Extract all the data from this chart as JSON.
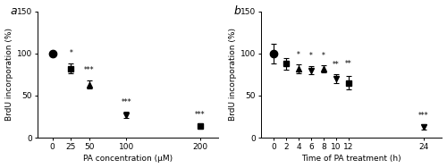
{
  "panel_a": {
    "x": [
      0,
      25,
      50,
      100,
      200
    ],
    "y": [
      100,
      82,
      63,
      27,
      14
    ],
    "yerr": [
      3,
      6,
      5,
      4,
      3
    ],
    "markers": [
      "o",
      "s",
      "^",
      "v",
      "s"
    ],
    "fillstyles": [
      "full",
      "full",
      "full",
      "full",
      "full"
    ],
    "mfc": [
      "black",
      "black",
      "black",
      "black",
      "black"
    ],
    "marker_sizes": [
      6,
      5,
      5,
      5,
      5
    ],
    "significance": [
      "",
      "*",
      "***",
      "***",
      "***"
    ],
    "sig_offset": [
      0,
      8,
      7,
      6,
      5
    ],
    "xlabel": "PA concentration (μM)",
    "ylabel": "BrdU incorporation (%)",
    "xlim": [
      -20,
      225
    ],
    "ylim": [
      0,
      150
    ],
    "yticks": [
      0,
      50,
      100,
      150
    ],
    "xticks": [
      0,
      25,
      50,
      100,
      200
    ],
    "panel_label": "a"
  },
  "panel_b": {
    "x": [
      0,
      2,
      4,
      6,
      8,
      10,
      12,
      24
    ],
    "y": [
      100,
      88,
      82,
      80,
      82,
      70,
      65,
      13
    ],
    "yerr": [
      12,
      7,
      5,
      5,
      4,
      5,
      8,
      3
    ],
    "markers": [
      "o",
      "s",
      "^",
      "v",
      "^",
      "v",
      "s",
      "v"
    ],
    "fillstyles": [
      "full",
      "full",
      "full",
      "full",
      "full",
      "full",
      "full",
      "full"
    ],
    "mfc": [
      "black",
      "black",
      "black",
      "black",
      "black",
      "black",
      "black",
      "black"
    ],
    "marker_sizes": [
      6,
      5,
      5,
      5,
      5,
      5,
      5,
      5
    ],
    "significance": [
      "",
      "",
      "*",
      "*",
      "*",
      "**",
      "**",
      "***"
    ],
    "sig_offset": [
      0,
      0,
      7,
      7,
      6,
      7,
      10,
      5
    ],
    "xlabel": "Time of PA treatment (h)",
    "ylabel": "BrdU incorporation (%)",
    "xlim": [
      -2,
      27
    ],
    "ylim": [
      0,
      150
    ],
    "yticks": [
      0,
      50,
      100,
      150
    ],
    "xticks": [
      0,
      2,
      4,
      6,
      8,
      10,
      12,
      24
    ],
    "panel_label": "b"
  },
  "fig_bg": "white",
  "font_size": 6.5,
  "sig_font_size": 5.5,
  "panel_label_size": 9
}
